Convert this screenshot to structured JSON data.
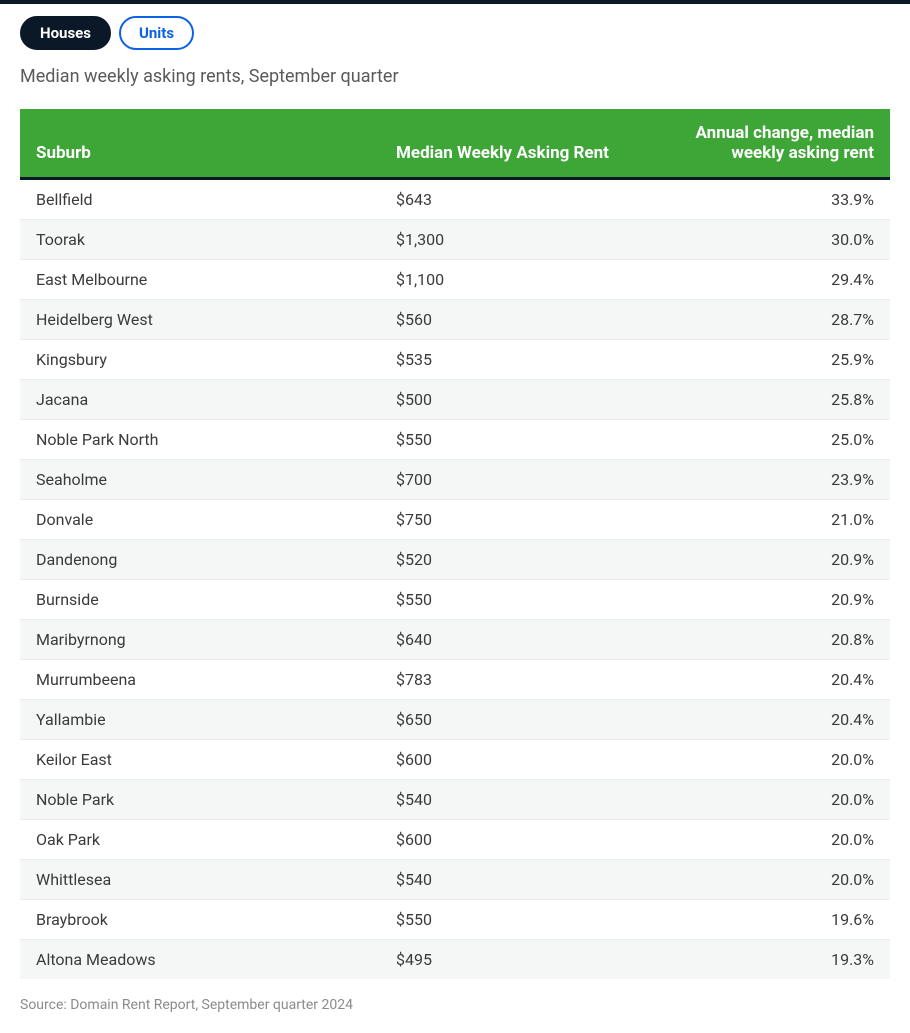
{
  "tabs": {
    "active": "Houses",
    "inactive": "Units"
  },
  "subtitle": "Median weekly asking rents, September quarter",
  "table": {
    "columns": [
      "Suburb",
      "Median Weekly Asking Rent",
      "Annual change, median weekly asking rent"
    ],
    "header_bg": "#3ea537",
    "header_fg": "#ffffff",
    "row_alt_bg": "#f5f6f6",
    "border_color": "#eceded",
    "rows": [
      {
        "suburb": "Bellfield",
        "rent": "$643",
        "change": "33.9%"
      },
      {
        "suburb": "Toorak",
        "rent": "$1,300",
        "change": "30.0%"
      },
      {
        "suburb": "East Melbourne",
        "rent": "$1,100",
        "change": "29.4%"
      },
      {
        "suburb": "Heidelberg West",
        "rent": "$560",
        "change": "28.7%"
      },
      {
        "suburb": "Kingsbury",
        "rent": "$535",
        "change": "25.9%"
      },
      {
        "suburb": "Jacana",
        "rent": "$500",
        "change": "25.8%"
      },
      {
        "suburb": "Noble Park North",
        "rent": "$550",
        "change": "25.0%"
      },
      {
        "suburb": "Seaholme",
        "rent": "$700",
        "change": "23.9%"
      },
      {
        "suburb": "Donvale",
        "rent": "$750",
        "change": "21.0%"
      },
      {
        "suburb": "Dandenong",
        "rent": "$520",
        "change": "20.9%"
      },
      {
        "suburb": "Burnside",
        "rent": "$550",
        "change": "20.9%"
      },
      {
        "suburb": "Maribyrnong",
        "rent": "$640",
        "change": "20.8%"
      },
      {
        "suburb": "Murrumbeena",
        "rent": "$783",
        "change": "20.4%"
      },
      {
        "suburb": "Yallambie",
        "rent": "$650",
        "change": "20.4%"
      },
      {
        "suburb": "Keilor East",
        "rent": "$600",
        "change": "20.0%"
      },
      {
        "suburb": "Noble Park",
        "rent": "$540",
        "change": "20.0%"
      },
      {
        "suburb": "Oak Park",
        "rent": "$600",
        "change": "20.0%"
      },
      {
        "suburb": "Whittlesea",
        "rent": "$540",
        "change": "20.0%"
      },
      {
        "suburb": "Braybrook",
        "rent": "$550",
        "change": "19.6%"
      },
      {
        "suburb": "Altona Meadows",
        "rent": "$495",
        "change": "19.3%"
      }
    ]
  },
  "source": "Source: Domain Rent Report, September quarter 2024"
}
